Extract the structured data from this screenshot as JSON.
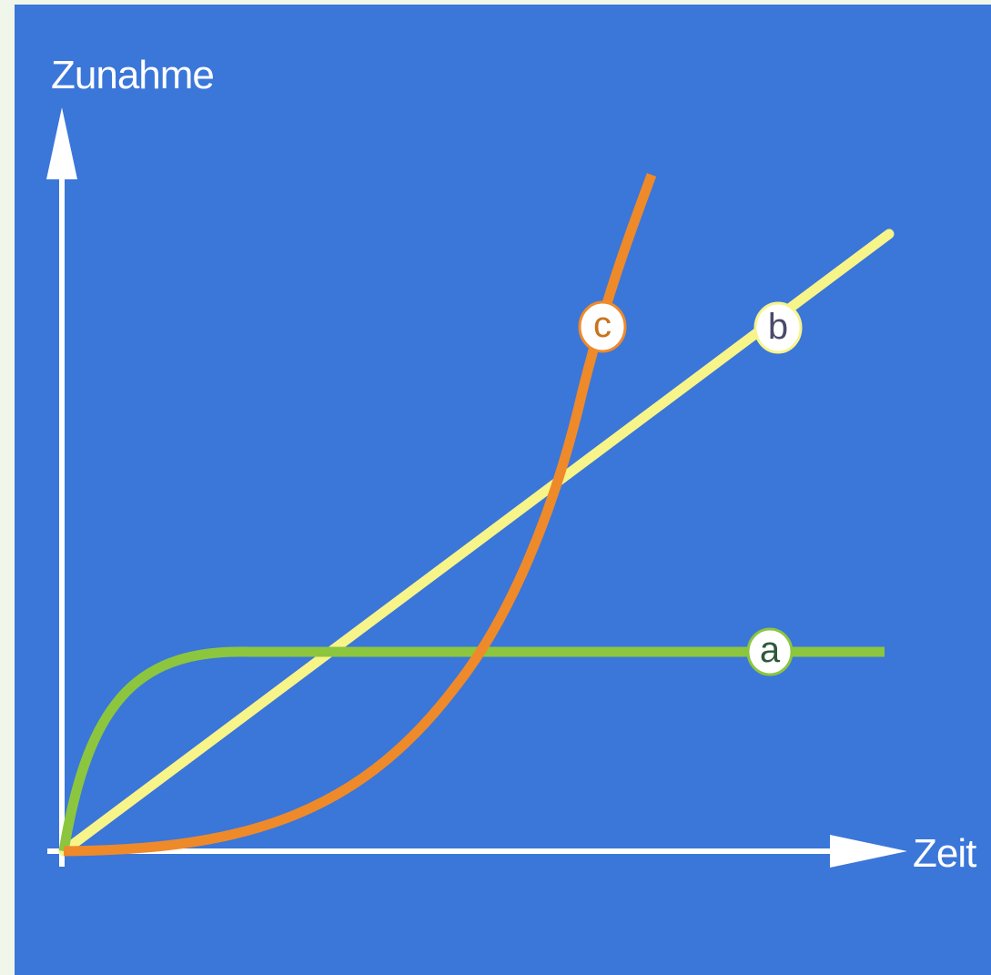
{
  "diagram": {
    "colors": {
      "page": "#f1f6ea",
      "panel": "#3b76d9",
      "axis": "#ffffff",
      "curve_a": "#8cc63f",
      "curve_b": "#f7f48a",
      "curve_c": "#ee8a2a",
      "badge_fill": "#ffffff",
      "badge_a_text": "#2e5a3a",
      "badge_b_text": "#4a4a6a",
      "badge_c_text": "#c8741f"
    },
    "y_axis_label": "Zunahme",
    "x_axis_label": "Zeit",
    "curves": [
      {
        "id": "a",
        "label": "a",
        "shape": "saturating growth"
      },
      {
        "id": "b",
        "label": "b",
        "shape": "linear growth"
      },
      {
        "id": "c",
        "label": "c",
        "shape": "exponential growth"
      }
    ]
  }
}
